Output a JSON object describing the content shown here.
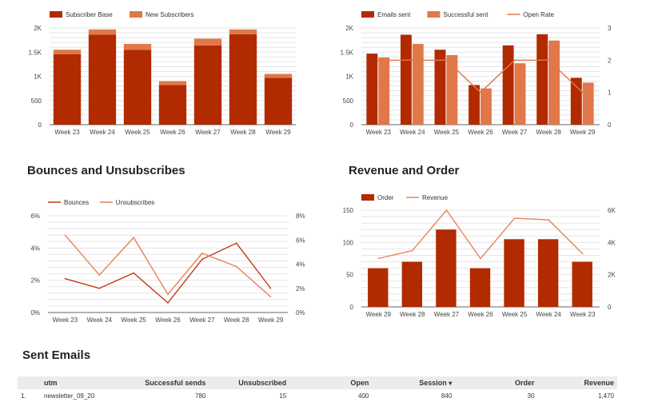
{
  "colors": {
    "dark": "#b22a00",
    "light": "#e0784a",
    "line_dark": "#c23b13",
    "line_light": "#e8815a"
  },
  "sections": {
    "bounces_title": "Bounces and Unsubscribes",
    "revenue_title": "Revenue and Order",
    "sent_title": "Sent Emails"
  },
  "chart_data": [
    {
      "id": "subscribers",
      "type": "bar",
      "stacked": true,
      "categories": [
        "Week 23",
        "Week 24",
        "Week 25",
        "Week 26",
        "Week 27",
        "Week 28",
        "Week 29"
      ],
      "series": [
        {
          "name": "Subscriber Base",
          "values": [
            1460,
            1860,
            1550,
            820,
            1640,
            1870,
            970
          ],
          "color": "#b22a00"
        },
        {
          "name": "New Subscribers",
          "values": [
            90,
            110,
            120,
            80,
            140,
            100,
            80
          ],
          "color": "#e0784a"
        }
      ],
      "yticks": [
        "0",
        "500",
        "1K",
        "1.5K",
        "2K"
      ],
      "ylim": [
        0,
        2000
      ],
      "legend": "top-left"
    },
    {
      "id": "emails",
      "type": "bar",
      "categories": [
        "Week 23",
        "Week 24",
        "Week 25",
        "Week 26",
        "Week 27",
        "Week 28",
        "Week 29"
      ],
      "series": [
        {
          "name": "Emails sent",
          "values": [
            1470,
            1860,
            1550,
            820,
            1640,
            1870,
            970
          ],
          "color": "#b22a00",
          "kind": "bar",
          "axis": "left"
        },
        {
          "name": "Successful sent",
          "values": [
            1390,
            1670,
            1440,
            750,
            1270,
            1740,
            870
          ],
          "color": "#e0784a",
          "kind": "bar",
          "axis": "left"
        },
        {
          "name": "Open Rate",
          "values": [
            2,
            2,
            2,
            1,
            2,
            2,
            1
          ],
          "color": "#e0784a",
          "kind": "line",
          "axis": "right"
        }
      ],
      "yticks": [
        "0",
        "500",
        "1K",
        "1.5K",
        "2K"
      ],
      "ylim": [
        0,
        2000
      ],
      "y2ticks": [
        "0",
        "1",
        "2",
        "3"
      ],
      "y2lim": [
        0,
        3
      ],
      "legend": "top-left"
    },
    {
      "id": "bounces",
      "type": "line",
      "categories": [
        "Week 23",
        "Week 24",
        "Week 25",
        "Week 26",
        "Week 27",
        "Week 28",
        "Week 29"
      ],
      "series": [
        {
          "name": "Bounces",
          "values": [
            2.1,
            1.5,
            2.45,
            0.6,
            3.3,
            4.3,
            1.5
          ],
          "color": "#c23b13",
          "axis": "left"
        },
        {
          "name": "Unsubscribes",
          "values": [
            6.4,
            3.1,
            6.2,
            1.5,
            4.9,
            3.8,
            1.3
          ],
          "color": "#e8815a",
          "axis": "right"
        }
      ],
      "yticks": [
        "0%",
        "2%",
        "4%",
        "6%"
      ],
      "ylim": [
        0,
        6
      ],
      "y2ticks": [
        "0%",
        "2%",
        "4%",
        "6%",
        "8%"
      ],
      "y2lim": [
        0,
        8
      ],
      "legend": "top-left"
    },
    {
      "id": "revenue",
      "type": "bar",
      "categories": [
        "Week 29",
        "Week 28",
        "Week 27",
        "Week 26",
        "Week 25",
        "Week 24",
        "Week 23"
      ],
      "series": [
        {
          "name": "Order",
          "values": [
            60,
            70,
            120,
            60,
            105,
            105,
            70
          ],
          "color": "#b22a00",
          "kind": "bar",
          "axis": "left"
        },
        {
          "name": "Revenue",
          "values": [
            3000,
            3500,
            6000,
            3000,
            5500,
            5400,
            3300
          ],
          "color": "#e8815a",
          "kind": "line",
          "axis": "right"
        }
      ],
      "yticks": [
        "0",
        "50",
        "100",
        "150"
      ],
      "ylim": [
        0,
        150
      ],
      "y2ticks": [
        "0",
        "2K",
        "4K",
        "6K"
      ],
      "y2lim": [
        0,
        6000
      ],
      "legend": "top-left"
    }
  ],
  "table": {
    "headers": [
      "utm",
      "Successful sends",
      "Unsubscribed",
      "Open",
      "Session",
      "Order",
      "Revenue"
    ],
    "sort_indicator": "▾",
    "rows": [
      {
        "index": "1.",
        "utm": "newsletter_09_20",
        "successful_sends": "780",
        "unsubscribed": "15",
        "open": "400",
        "session": "840",
        "order": "30",
        "revenue": "1,470"
      }
    ]
  }
}
